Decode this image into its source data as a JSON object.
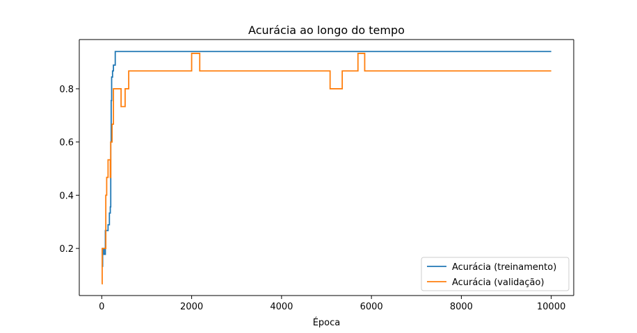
{
  "chart_data": {
    "type": "line",
    "title": "Acurácia ao longo do tempo",
    "xlabel": "Época",
    "ylabel": "",
    "xlim": [
      -500,
      10500
    ],
    "ylim": [
      0.023,
      0.985
    ],
    "xticks": [
      0,
      2000,
      4000,
      6000,
      8000,
      10000
    ],
    "yticks": [
      0.2,
      0.4,
      0.6,
      0.8
    ],
    "ytick_labels": [
      "0.2",
      "0.4",
      "0.6",
      "0.8"
    ],
    "grid": false,
    "legend_position": "lower-right",
    "series": [
      {
        "name": "Acurácia (treinamento)",
        "color": "#1f77b4",
        "step": true,
        "x": [
          0,
          20,
          50,
          80,
          100,
          140,
          170,
          190,
          200,
          210,
          220,
          240,
          260,
          300,
          10000
        ],
        "y": [
          0.133,
          0.2,
          0.178,
          0.267,
          0.267,
          0.289,
          0.333,
          0.356,
          0.6,
          0.756,
          0.844,
          0.867,
          0.889,
          0.94,
          0.94
        ]
      },
      {
        "name": "Acurácia (validação)",
        "color": "#ff7f0e",
        "step": true,
        "x": [
          0,
          10,
          40,
          90,
          110,
          140,
          190,
          200,
          230,
          260,
          300,
          430,
          520,
          600,
          2000,
          2180,
          5080,
          5350,
          5700,
          5850,
          10000
        ],
        "y": [
          0.067,
          0.2,
          0.2,
          0.4,
          0.467,
          0.533,
          0.467,
          0.6,
          0.667,
          0.8,
          0.8,
          0.733,
          0.8,
          0.867,
          0.933,
          0.867,
          0.8,
          0.867,
          0.933,
          0.867,
          0.867
        ]
      }
    ]
  }
}
